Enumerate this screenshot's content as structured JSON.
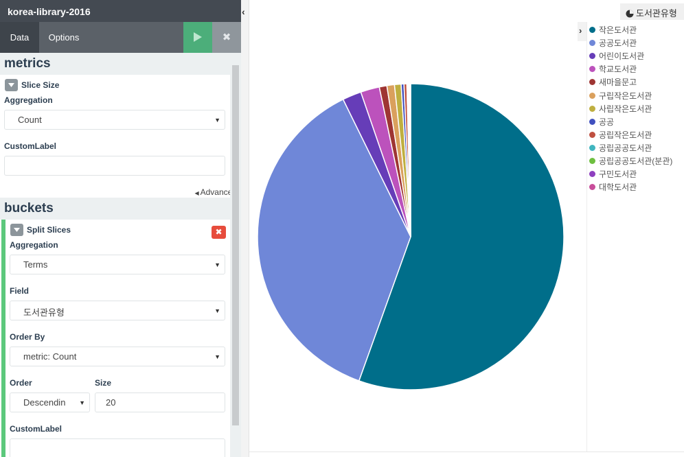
{
  "window": {
    "title": "korea-library-2016"
  },
  "tabs": {
    "data_label": "Data",
    "options_label": "Options"
  },
  "toolbar": {
    "apply_icon": "play-icon",
    "discard_icon": "close-icon",
    "discard_label": "✖"
  },
  "metrics": {
    "heading": "metrics",
    "agg_title": "Slice Size",
    "aggregation_label": "Aggregation",
    "aggregation_value": "Count",
    "custom_label_label": "CustomLabel",
    "custom_label_value": "",
    "advanced_label": "Advanced"
  },
  "buckets": {
    "heading": "buckets",
    "agg_title": "Split Slices",
    "remove_label": "✖",
    "aggregation_label": "Aggregation",
    "aggregation_value": "Terms",
    "field_label": "Field",
    "field_value": "도서관유형",
    "order_by_label": "Order By",
    "order_by_value": "metric: Count",
    "order_label": "Order",
    "order_value": "Descendin",
    "size_label": "Size",
    "size_value": "20",
    "custom_label_label": "CustomLabel",
    "custom_label_value": ""
  },
  "viz": {
    "type_label": "도서관유형",
    "type_icon": "pie-chart-icon",
    "legend_toggle": "›",
    "collapse_sidebar": "‹"
  },
  "chart_data": {
    "type": "pie",
    "categories": [
      "작은도서관",
      "공공도서관",
      "어린이도서관",
      "학교도서관",
      "새마을문고",
      "구립작은도서관",
      "사립작은도서관",
      "공공",
      "공립작은도서관",
      "공립공공도서관",
      "공립공공도서관(분관)",
      "구민도서관",
      "대학도서관"
    ],
    "values": [
      55.7,
      37.4,
      2.0,
      2.0,
      0.8,
      0.8,
      0.7,
      0.3,
      0.3,
      0.1,
      0.1,
      0.1,
      0.1
    ],
    "colors": [
      "#006e8a",
      "#6f87d8",
      "#663db8",
      "#bc52bc",
      "#9e3533",
      "#daa05d",
      "#bfaf40",
      "#4050bf",
      "#bf5040",
      "#40b5bf",
      "#6ebf40",
      "#8e3fbf",
      "#c84d9a"
    ],
    "legend_position": "right"
  }
}
